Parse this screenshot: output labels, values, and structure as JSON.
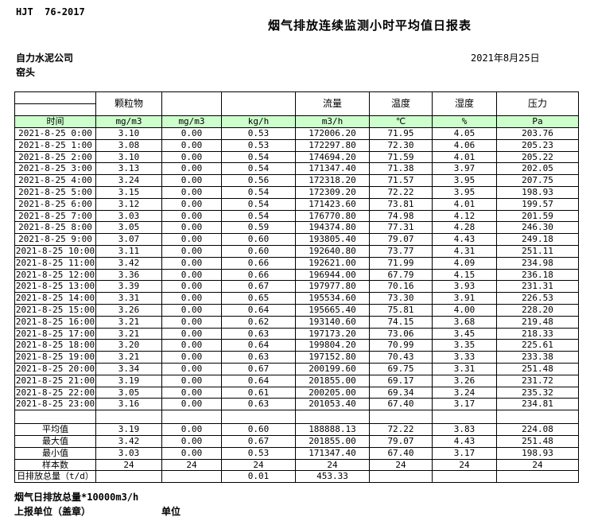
{
  "page": {
    "standard_code": "HJT  76-2017",
    "title": "烟气排放连续监测小时平均值日报表",
    "company": "自力水泥公司",
    "location": "窑头",
    "date": "2021年8月25日"
  },
  "table": {
    "time_header": "时间",
    "group_headers": {
      "particulate": "颗粒物",
      "flow": "流量",
      "temperature": "温度",
      "humidity": "湿度",
      "pressure": "压力"
    },
    "units": [
      "mg/m3",
      "mg/m3",
      "kg/h",
      "m3/h",
      "℃",
      "%",
      "Pa"
    ],
    "rows": [
      {
        "label": "2021-8-25 0:00",
        "values": [
          "3.10",
          "0.00",
          "0.53",
          "172006.20",
          "71.95",
          "4.05",
          "203.76"
        ]
      },
      {
        "label": "2021-8-25 1:00",
        "values": [
          "3.08",
          "0.00",
          "0.53",
          "172297.80",
          "72.30",
          "4.06",
          "205.23"
        ]
      },
      {
        "label": "2021-8-25 2:00",
        "values": [
          "3.10",
          "0.00",
          "0.54",
          "174694.20",
          "71.59",
          "4.01",
          "205.22"
        ]
      },
      {
        "label": "2021-8-25 3:00",
        "values": [
          "3.13",
          "0.00",
          "0.54",
          "171347.40",
          "71.38",
          "3.97",
          "202.05"
        ]
      },
      {
        "label": "2021-8-25 4:00",
        "values": [
          "3.24",
          "0.00",
          "0.56",
          "172318.20",
          "71.57",
          "3.95",
          "207.75"
        ]
      },
      {
        "label": "2021-8-25 5:00",
        "values": [
          "3.15",
          "0.00",
          "0.54",
          "172309.20",
          "72.22",
          "3.95",
          "198.93"
        ]
      },
      {
        "label": "2021-8-25 6:00",
        "values": [
          "3.12",
          "0.00",
          "0.54",
          "171423.60",
          "73.81",
          "4.01",
          "199.57"
        ]
      },
      {
        "label": "2021-8-25 7:00",
        "values": [
          "3.03",
          "0.00",
          "0.54",
          "176770.80",
          "74.98",
          "4.12",
          "201.59"
        ]
      },
      {
        "label": "2021-8-25 8:00",
        "values": [
          "3.05",
          "0.00",
          "0.59",
          "194374.80",
          "77.31",
          "4.28",
          "246.30"
        ]
      },
      {
        "label": "2021-8-25 9:00",
        "values": [
          "3.07",
          "0.00",
          "0.60",
          "193805.40",
          "79.07",
          "4.43",
          "249.18"
        ]
      },
      {
        "label": "2021-8-25 10:00",
        "values": [
          "3.11",
          "0.00",
          "0.60",
          "192640.80",
          "73.77",
          "4.31",
          "251.11"
        ]
      },
      {
        "label": "2021-8-25 11:00",
        "values": [
          "3.42",
          "0.00",
          "0.66",
          "192621.00",
          "71.99",
          "4.09",
          "234.98"
        ]
      },
      {
        "label": "2021-8-25 12:00",
        "values": [
          "3.36",
          "0.00",
          "0.66",
          "196944.00",
          "67.79",
          "4.15",
          "236.18"
        ]
      },
      {
        "label": "2021-8-25 13:00",
        "values": [
          "3.39",
          "0.00",
          "0.67",
          "197977.80",
          "70.16",
          "3.93",
          "231.31"
        ]
      },
      {
        "label": "2021-8-25 14:00",
        "values": [
          "3.31",
          "0.00",
          "0.65",
          "195534.60",
          "73.30",
          "3.91",
          "226.53"
        ]
      },
      {
        "label": "2021-8-25 15:00",
        "values": [
          "3.26",
          "0.00",
          "0.64",
          "195665.40",
          "75.81",
          "4.00",
          "228.20"
        ]
      },
      {
        "label": "2021-8-25 16:00",
        "values": [
          "3.21",
          "0.00",
          "0.62",
          "193140.60",
          "74.15",
          "3.68",
          "219.48"
        ]
      },
      {
        "label": "2021-8-25 17:00",
        "values": [
          "3.21",
          "0.00",
          "0.63",
          "197173.20",
          "73.06",
          "3.45",
          "218.33"
        ]
      },
      {
        "label": "2021-8-25 18:00",
        "values": [
          "3.20",
          "0.00",
          "0.64",
          "199804.20",
          "70.99",
          "3.35",
          "225.61"
        ]
      },
      {
        "label": "2021-8-25 19:00",
        "values": [
          "3.21",
          "0.00",
          "0.63",
          "197152.80",
          "70.43",
          "3.33",
          "233.38"
        ]
      },
      {
        "label": "2021-8-25 20:00",
        "values": [
          "3.34",
          "0.00",
          "0.67",
          "200199.60",
          "69.75",
          "3.31",
          "251.48"
        ]
      },
      {
        "label": "2021-8-25 21:00",
        "values": [
          "3.19",
          "0.00",
          "0.64",
          "201855.00",
          "69.17",
          "3.26",
          "231.72"
        ]
      },
      {
        "label": "2021-8-25 22:00",
        "values": [
          "3.05",
          "0.00",
          "0.61",
          "200205.00",
          "69.34",
          "3.24",
          "235.32"
        ]
      },
      {
        "label": "2021-8-25 23:00",
        "values": [
          "3.16",
          "0.00",
          "0.63",
          "201053.40",
          "67.40",
          "3.17",
          "234.81"
        ]
      }
    ],
    "summary_rows": [
      {
        "label": "平均值",
        "values": [
          "3.19",
          "0.00",
          "0.60",
          "188888.13",
          "72.22",
          "3.83",
          "224.08"
        ]
      },
      {
        "label": "最大值",
        "values": [
          "3.42",
          "0.00",
          "0.67",
          "201855.00",
          "79.07",
          "4.43",
          "251.48"
        ]
      },
      {
        "label": "最小值",
        "values": [
          "3.03",
          "0.00",
          "0.53",
          "171347.40",
          "67.40",
          "3.17",
          "198.93"
        ]
      },
      {
        "label": "样本数",
        "values": [
          "24",
          "24",
          "24",
          "24",
          "24",
          "24",
          "24"
        ]
      }
    ],
    "total_row": {
      "label": "日排放总量（t/d）",
      "kg_h": "0.01",
      "m3_h": "453.33"
    }
  },
  "footer": {
    "note": "烟气日排放总量*10000m3/h",
    "stamp_label": "上报单位（盖章）",
    "unit_label": "单位"
  },
  "colors": {
    "header_green": "#ccffcc"
  }
}
